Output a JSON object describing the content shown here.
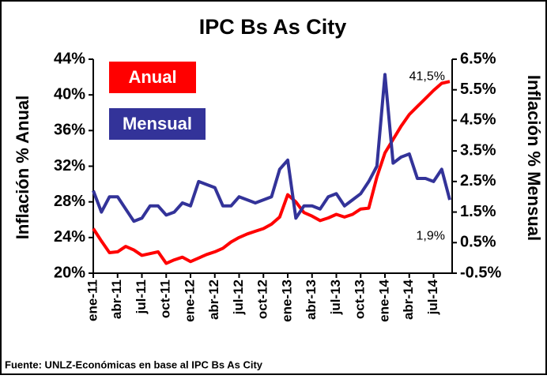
{
  "chart_data": {
    "type": "line",
    "title": "IPC Bs As City",
    "ylabel": "Inflación % Anual",
    "y2label": "Inflación % Mensual",
    "source": "Fuente: UNLZ-Económicas en base al  IPC Bs As City",
    "categories": [
      "ene-11",
      null,
      null,
      "abr-11",
      null,
      null,
      "jul-11",
      null,
      null,
      "oct-11",
      null,
      null,
      "ene-12",
      null,
      null,
      "abr-12",
      null,
      null,
      "jul-12",
      null,
      null,
      "oct-12",
      null,
      null,
      "ene-13",
      null,
      null,
      "abr-13",
      null,
      null,
      "jul-13",
      null,
      null,
      "oct-13",
      null,
      null,
      "ene-14",
      null,
      null,
      "abr-14",
      null,
      null,
      "jul-14",
      null,
      null
    ],
    "series": [
      {
        "name": "Anual",
        "color": "#ff0000",
        "axis": "y",
        "values": [
          25.0,
          23.6,
          22.3,
          22.4,
          23.0,
          22.6,
          22.0,
          22.2,
          22.4,
          21.1,
          21.5,
          21.8,
          21.3,
          21.7,
          22.1,
          22.4,
          22.8,
          23.5,
          24.0,
          24.4,
          24.7,
          25.0,
          25.5,
          26.3,
          28.8,
          28.0,
          26.8,
          26.4,
          25.9,
          26.2,
          26.6,
          26.3,
          26.6,
          27.2,
          27.3,
          30.8,
          33.5,
          35.0,
          36.5,
          37.8,
          38.7,
          39.6,
          40.5,
          41.3,
          41.5
        ]
      },
      {
        "name": "Mensual",
        "color": "#333399",
        "axis": "y2",
        "values": [
          2.2,
          1.5,
          2.0,
          2.0,
          1.6,
          1.2,
          1.3,
          1.7,
          1.7,
          1.4,
          1.5,
          1.8,
          1.7,
          2.5,
          2.4,
          2.3,
          1.7,
          1.7,
          2.0,
          1.9,
          1.8,
          1.9,
          2.0,
          2.9,
          3.2,
          1.3,
          1.7,
          1.7,
          1.6,
          2.0,
          2.1,
          1.7,
          1.9,
          2.1,
          2.5,
          3.0,
          6.0,
          3.1,
          3.3,
          3.4,
          2.6,
          2.6,
          2.5,
          2.9,
          1.9
        ]
      }
    ],
    "annotations": [
      {
        "text": "41,5%",
        "series": 0,
        "index": 44
      },
      {
        "text": "1,9%",
        "series": 1,
        "index": 44
      }
    ],
    "ylim": [
      20,
      44
    ],
    "yticks": [
      {
        "value": 20,
        "label": "20%"
      },
      {
        "value": 24,
        "label": "24%"
      },
      {
        "value": 28,
        "label": "28%"
      },
      {
        "value": 32,
        "label": "32%"
      },
      {
        "value": 36,
        "label": "36%"
      },
      {
        "value": 40,
        "label": "40%"
      },
      {
        "value": 44,
        "label": "44%"
      }
    ],
    "y2lim": [
      -0.5,
      6.5
    ],
    "y2ticks": [
      {
        "value": -0.5,
        "label": "-0.5%"
      },
      {
        "value": 0.5,
        "label": "0.5%"
      },
      {
        "value": 1.5,
        "label": "1.5%"
      },
      {
        "value": 2.5,
        "label": "2.5%"
      },
      {
        "value": 3.5,
        "label": "3.5%"
      },
      {
        "value": 4.5,
        "label": "4.5%"
      },
      {
        "value": 5.5,
        "label": "5.5%"
      },
      {
        "value": 6.5,
        "label": "6.5%"
      }
    ],
    "grid": false,
    "legend": "upper left"
  }
}
